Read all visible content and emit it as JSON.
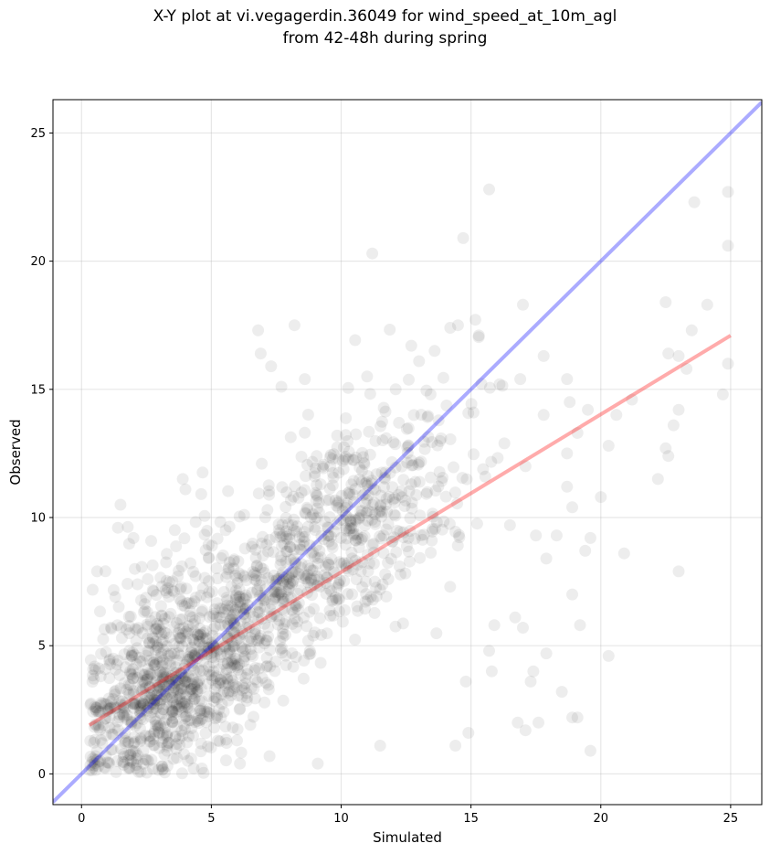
{
  "chart_data": {
    "type": "scatter",
    "title": [
      "X-Y plot at vi.vegagerdin.36049 for wind_speed_at_10m_agl",
      "from 42-48h during spring"
    ],
    "xlabel": "Simulated",
    "ylabel": "Observed",
    "xlim": [
      -1.1,
      26.2
    ],
    "ylim": [
      -1.2,
      26.3
    ],
    "xticks": [
      0,
      5,
      10,
      15,
      20,
      25
    ],
    "yticks": [
      0,
      5,
      10,
      15,
      20,
      25
    ],
    "grid": true,
    "scatter_color": "#000000",
    "scatter_alpha": 0.07,
    "lines": [
      {
        "label": "1:1 line",
        "color": "#0000ff",
        "alpha": 0.33,
        "x": [
          -1.1,
          26.2
        ],
        "y": [
          -1.1,
          26.2
        ]
      },
      {
        "label": "regression fit",
        "color": "#ff0000",
        "alpha": 0.33,
        "x": [
          0.3,
          25.0
        ],
        "y": [
          1.9,
          17.1
        ]
      }
    ],
    "outliers": [
      [
        15.7,
        22.8
      ],
      [
        24.9,
        22.7
      ],
      [
        23.6,
        22.3
      ],
      [
        14.7,
        20.9
      ],
      [
        24.9,
        20.6
      ],
      [
        11.2,
        20.3
      ],
      [
        22.5,
        18.4
      ],
      [
        24.1,
        18.3
      ],
      [
        17.0,
        18.3
      ],
      [
        8.2,
        17.5
      ],
      [
        6.8,
        17.3
      ],
      [
        23.5,
        17.3
      ],
      [
        15.3,
        17.1
      ],
      [
        12.7,
        16.7
      ],
      [
        22.6,
        16.4
      ],
      [
        23.0,
        16.3
      ],
      [
        17.8,
        16.3
      ],
      [
        24.9,
        16.0
      ],
      [
        7.3,
        15.9
      ],
      [
        23.3,
        15.8
      ],
      [
        16.9,
        15.4
      ],
      [
        18.7,
        15.4
      ],
      [
        24.7,
        14.8
      ],
      [
        21.2,
        14.6
      ],
      [
        18.8,
        14.5
      ],
      [
        19.5,
        14.2
      ],
      [
        23.0,
        14.2
      ],
      [
        17.8,
        14.0
      ],
      [
        20.6,
        14.0
      ],
      [
        22.8,
        13.6
      ],
      [
        19.1,
        13.3
      ],
      [
        22.5,
        12.7
      ],
      [
        20.3,
        12.8
      ],
      [
        18.7,
        12.5
      ],
      [
        22.6,
        12.4
      ],
      [
        17.1,
        12.0
      ],
      [
        22.2,
        11.5
      ],
      [
        18.7,
        11.2
      ],
      [
        20.0,
        10.8
      ],
      [
        18.9,
        10.4
      ],
      [
        16.5,
        9.7
      ],
      [
        18.3,
        9.3
      ],
      [
        19.6,
        9.2
      ],
      [
        17.5,
        9.3
      ],
      [
        17.9,
        8.4
      ],
      [
        20.9,
        8.6
      ],
      [
        19.4,
        8.7
      ],
      [
        23.0,
        7.9
      ],
      [
        18.9,
        7.0
      ],
      [
        16.7,
        6.1
      ],
      [
        15.9,
        5.8
      ],
      [
        17.0,
        5.7
      ],
      [
        19.2,
        5.8
      ],
      [
        15.7,
        4.8
      ],
      [
        20.3,
        4.6
      ],
      [
        17.9,
        4.7
      ],
      [
        17.3,
        3.6
      ],
      [
        17.4,
        4.0
      ],
      [
        18.5,
        3.2
      ],
      [
        14.8,
        3.6
      ],
      [
        15.8,
        4.0
      ],
      [
        18.9,
        2.2
      ],
      [
        19.1,
        2.2
      ],
      [
        16.8,
        2.0
      ],
      [
        17.1,
        1.7
      ],
      [
        17.6,
        2.0
      ],
      [
        19.6,
        0.9
      ],
      [
        14.9,
        1.6
      ],
      [
        14.4,
        1.1
      ],
      [
        11.5,
        1.1
      ],
      [
        9.1,
        0.4
      ],
      [
        6.1,
        0.4
      ],
      [
        3.1,
        0.3
      ],
      [
        0.6,
        7.9
      ],
      [
        1.5,
        10.5
      ],
      [
        3.9,
        11.5
      ],
      [
        4.0,
        11.1
      ],
      [
        1.4,
        9.6
      ],
      [
        2.0,
        9.2
      ],
      [
        7.7,
        15.1
      ],
      [
        6.9,
        16.4
      ],
      [
        8.6,
        15.4
      ],
      [
        11.0,
        15.5
      ],
      [
        12.1,
        15.0
      ],
      [
        13.6,
        16.5
      ],
      [
        14.2,
        17.4
      ],
      [
        14.5,
        17.5
      ],
      [
        13.0,
        16.1
      ]
    ],
    "clusters": [
      {
        "cx": 3.5,
        "cy": 3.2,
        "sx": 1.6,
        "sy": 1.7,
        "n": 520,
        "rho": 0.35
      },
      {
        "cx": 6.8,
        "cy": 6.5,
        "sx": 2.0,
        "sy": 2.4,
        "n": 420,
        "rho": 0.55
      },
      {
        "cx": 9.5,
        "cy": 9.3,
        "sx": 2.0,
        "sy": 2.5,
        "n": 300,
        "rho": 0.55
      },
      {
        "cx": 12.2,
        "cy": 10.8,
        "sx": 1.8,
        "sy": 2.6,
        "n": 160,
        "rho": 0.45
      },
      {
        "cx": 1.6,
        "cy": 3.0,
        "sx": 0.9,
        "sy": 2.3,
        "n": 140,
        "rho": 0.2
      },
      {
        "cx": 3.8,
        "cy": 6.5,
        "sx": 1.4,
        "sy": 1.8,
        "n": 90,
        "rho": 0.3
      }
    ]
  }
}
